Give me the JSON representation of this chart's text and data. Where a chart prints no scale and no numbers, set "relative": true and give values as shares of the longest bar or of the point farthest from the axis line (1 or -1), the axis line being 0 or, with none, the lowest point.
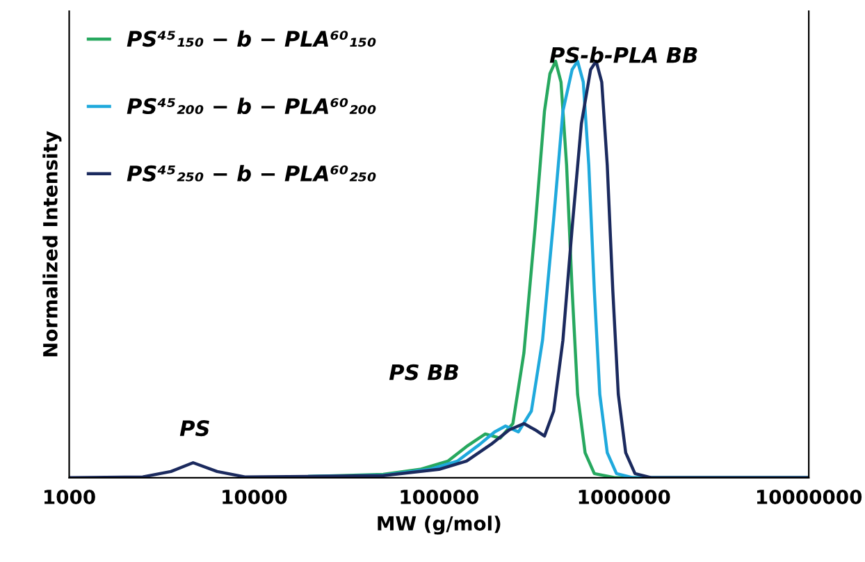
{
  "chart_data": {
    "type": "line",
    "relative": true,
    "log": "x",
    "xlabel": "MW (g/mol)",
    "ylabel": "Normalized Intensity",
    "xlim": [
      1000,
      10000000
    ],
    "xticks": [
      1000,
      10000,
      100000,
      1000000,
      10000000
    ],
    "grid": false,
    "legend": "top left",
    "marker": "none",
    "line_style": "solid",
    "annotations": [
      "PS",
      "PS BB",
      "PS-b-PLA BB"
    ],
    "series": [
      {
        "name": "PS⁴⁵₁₅₀ − b − PLA⁶⁰₁₅₀",
        "color": "#27a85f",
        "x": [
          20000,
          50000,
          79000,
          112000,
          141000,
          178000,
          214000,
          251000,
          288000,
          331000,
          372000,
          398000,
          427000,
          457000,
          490000,
          525000,
          562000,
          617000,
          692000,
          891000,
          10000000
        ],
        "values": [
          0.003,
          0.008,
          0.02,
          0.04,
          0.075,
          0.105,
          0.095,
          0.13,
          0.3,
          0.6,
          0.88,
          0.97,
          1.0,
          0.95,
          0.75,
          0.45,
          0.2,
          0.06,
          0.01,
          0,
          0
        ]
      },
      {
        "name": "PS⁴⁵₂₀₀ − b − PLA⁶⁰₂₀₀",
        "color": "#1fa9dc",
        "x": [
          20000,
          50000,
          89000,
          126000,
          166000,
          200000,
          229000,
          269000,
          316000,
          363000,
          417000,
          468000,
          525000,
          562000,
          603000,
          646000,
          692000,
          741000,
          813000,
          912000,
          1122000,
          10000000
        ],
        "values": [
          0.003,
          0.006,
          0.02,
          0.04,
          0.08,
          0.11,
          0.124,
          0.11,
          0.16,
          0.33,
          0.62,
          0.88,
          0.98,
          1.0,
          0.95,
          0.75,
          0.45,
          0.2,
          0.06,
          0.01,
          0,
          0
        ]
      },
      {
        "name": "PS⁴⁵₂₅₀ − b − PLA⁶⁰₂₅₀",
        "color": "#1b2a5e",
        "x": [
          1000,
          2500,
          3550,
          4680,
          6310,
          8910,
          20000,
          50000,
          100000,
          141000,
          191000,
          240000,
          288000,
          331000,
          372000,
          417000,
          468000,
          525000,
          589000,
          661000,
          708000,
          759000,
          813000,
          871000,
          933000,
          1023000,
          1148000,
          1413000,
          10000000
        ],
        "values": [
          0,
          0.002,
          0.015,
          0.036,
          0.015,
          0.002,
          0.003,
          0.005,
          0.02,
          0.04,
          0.08,
          0.115,
          0.13,
          0.115,
          0.1,
          0.16,
          0.33,
          0.6,
          0.85,
          0.98,
          1.0,
          0.95,
          0.75,
          0.45,
          0.2,
          0.06,
          0.01,
          0,
          0
        ]
      }
    ]
  }
}
